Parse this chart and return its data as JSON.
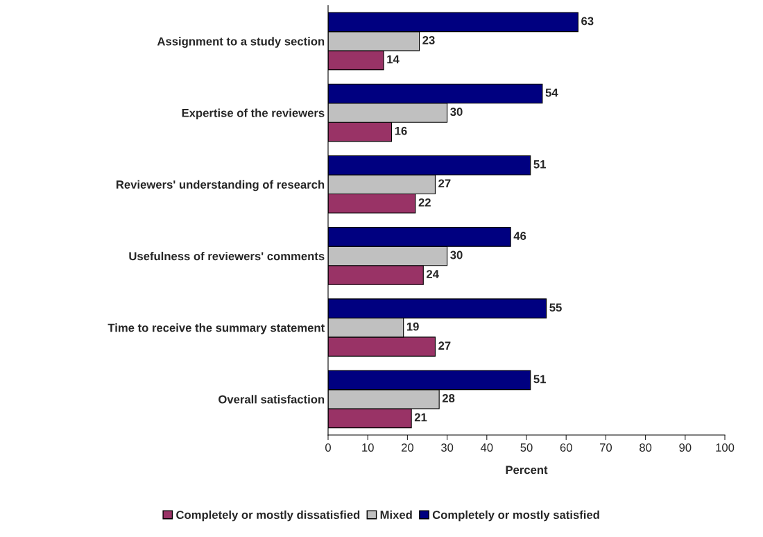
{
  "chart_data": {
    "type": "bar",
    "orientation": "horizontal",
    "xlabel": "Percent",
    "categories": [
      "Assignment to a study section",
      "Expertise of the reviewers",
      "Reviewers' understanding of research",
      "Usefulness of reviewers' comments",
      "Time to receive the summary statement",
      "Overall satisfaction"
    ],
    "series": [
      {
        "name": "Completely or mostly dissatisfied",
        "color": "#993366",
        "values": [
          14,
          16,
          22,
          24,
          27,
          21
        ]
      },
      {
        "name": "Mixed",
        "color": "#c0c0c0",
        "values": [
          23,
          30,
          27,
          30,
          19,
          28
        ]
      },
      {
        "name": "Completely or mostly satisfied",
        "color": "#000080",
        "values": [
          63,
          54,
          51,
          46,
          55,
          51
        ]
      }
    ],
    "xlim": [
      0,
      100
    ],
    "xticks": [
      0,
      10,
      20,
      30,
      40,
      50,
      60,
      70,
      80,
      90,
      100
    ],
    "data_labels": true,
    "grid": false,
    "legend": "bottom"
  }
}
